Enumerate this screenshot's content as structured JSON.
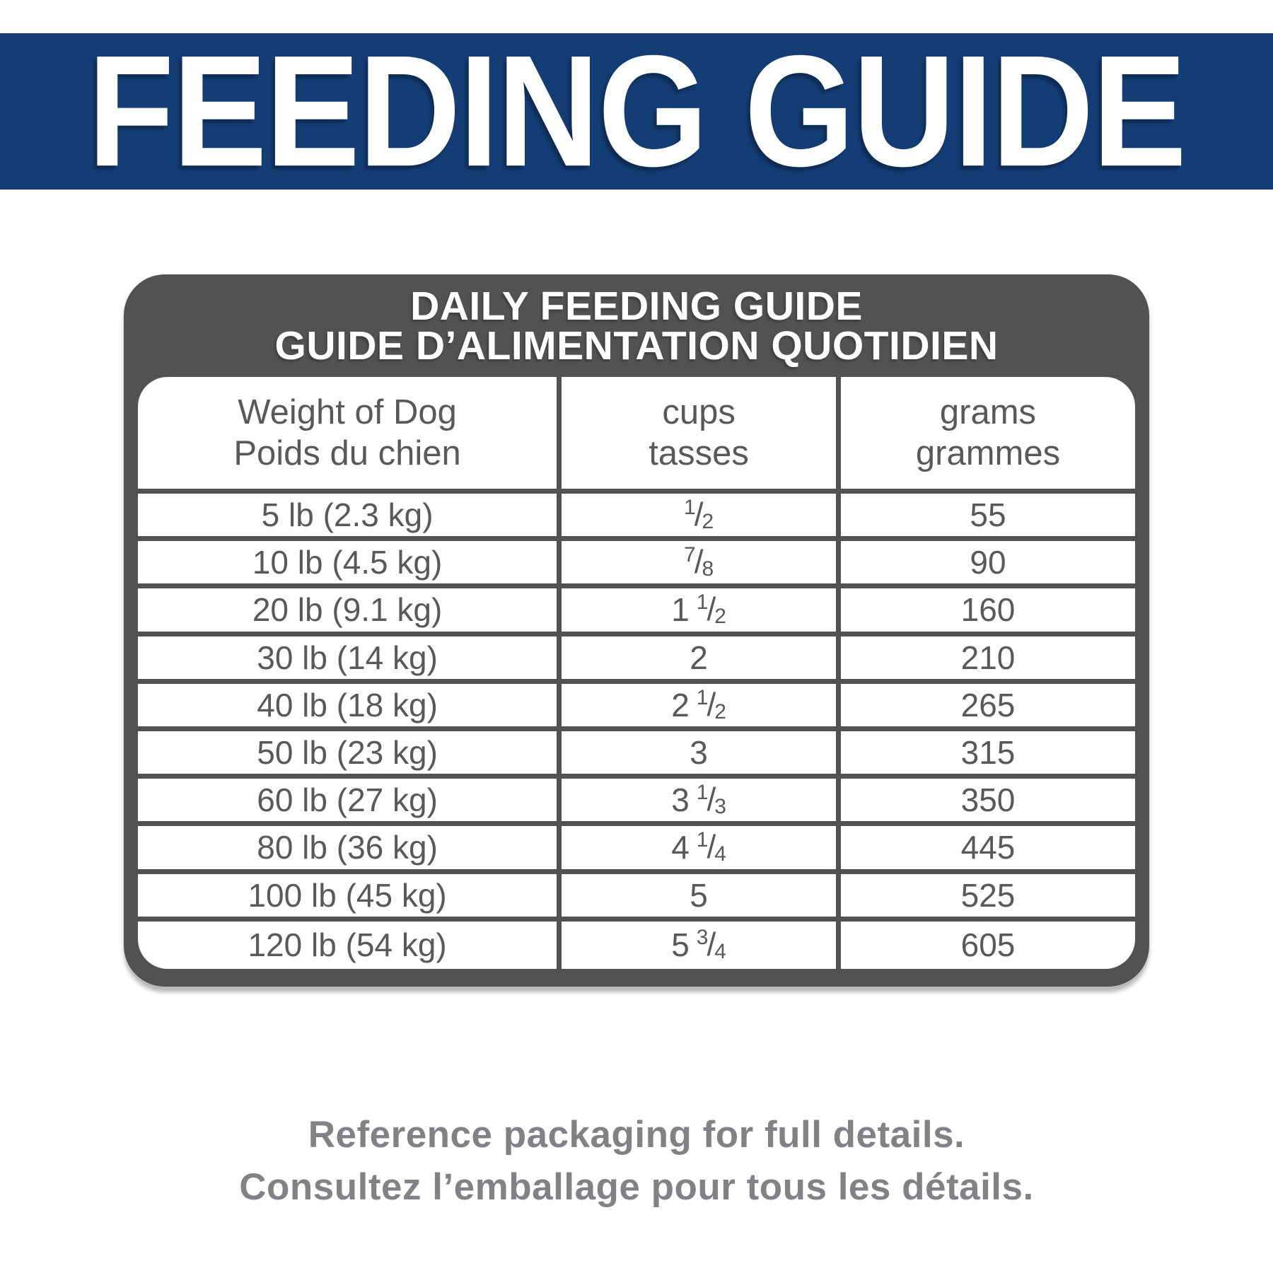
{
  "banner": {
    "title": "FEEDING GUIDE",
    "background_color": "#133d74",
    "text_color": "#ffffff"
  },
  "card": {
    "title_en": "DAILY FEEDING GUIDE",
    "title_fr": "GUIDE D’ALIMENTATION QUOTIDIEN",
    "frame_color": "#515254",
    "cell_text_color": "#58595b",
    "columns": [
      {
        "en": "Weight of Dog",
        "fr": "Poids du chien"
      },
      {
        "en": "cups",
        "fr": "tasses"
      },
      {
        "en": "grams",
        "fr": "grammes"
      }
    ],
    "rows": [
      {
        "weight": "5 lb (2.3 kg)",
        "cups": "1/2",
        "grams": "55"
      },
      {
        "weight": "10 lb (4.5 kg)",
        "cups": "7/8",
        "grams": "90"
      },
      {
        "weight": "20 lb (9.1 kg)",
        "cups": "1 1/2",
        "grams": "160"
      },
      {
        "weight": "30 lb (14 kg)",
        "cups": "2",
        "grams": "210"
      },
      {
        "weight": "40 lb (18 kg)",
        "cups": "2 1/2",
        "grams": "265"
      },
      {
        "weight": "50 lb (23 kg)",
        "cups": "3",
        "grams": "315"
      },
      {
        "weight": "60 lb (27 kg)",
        "cups": "3 1/3",
        "grams": "350"
      },
      {
        "weight": "80 lb (36 kg)",
        "cups": "4 1/4",
        "grams": "445"
      },
      {
        "weight": "100 lb (45 kg)",
        "cups": "5",
        "grams": "525"
      },
      {
        "weight": "120 lb (54 kg)",
        "cups": "5 3/4",
        "grams": "605"
      }
    ]
  },
  "footer": {
    "note_en": "Reference packaging for full details.",
    "note_fr": "Consultez l’emballage pour tous les détails.",
    "text_color": "#808285"
  }
}
